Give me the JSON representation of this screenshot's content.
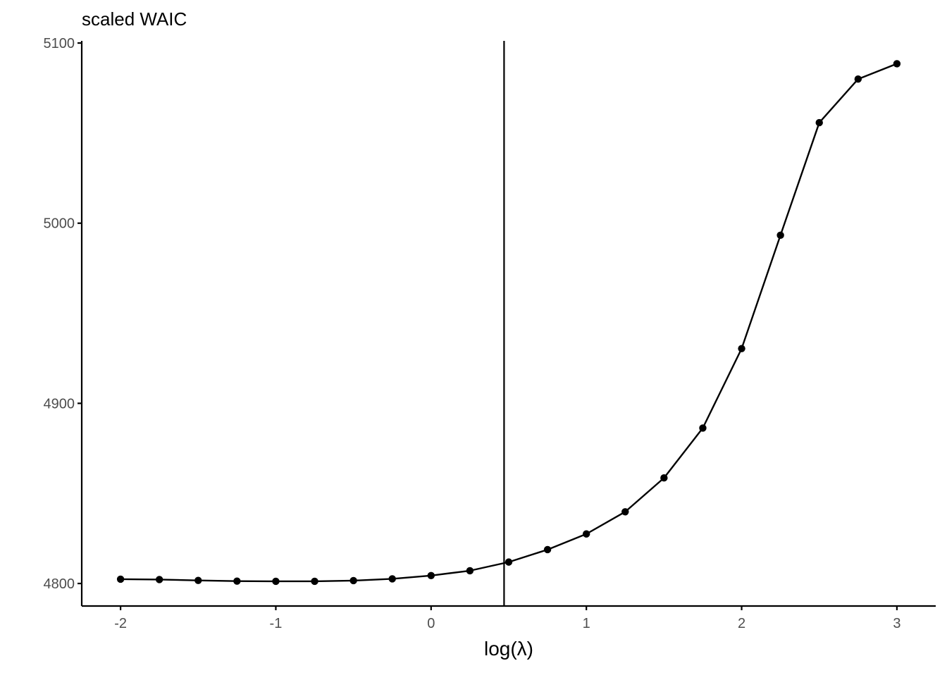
{
  "chart_data": {
    "type": "line",
    "title": "scaled WAIC",
    "xlabel": "log(λ)",
    "ylabel": "",
    "xlim": [
      -2.25,
      3.25
    ],
    "ylim": [
      4787.5,
      5101.2
    ],
    "x_ticks": [
      -2,
      -1,
      0,
      1,
      2,
      3
    ],
    "x_tick_labels": [
      "-2",
      "-1",
      "0",
      "1",
      "2",
      "3"
    ],
    "y_ticks": [
      4800,
      4900,
      5000,
      5100
    ],
    "y_tick_labels": [
      "4800",
      "4900",
      "5000",
      "5100"
    ],
    "grid": false,
    "vline_x": 0.47,
    "series": [
      {
        "x": [
          -2,
          -1.75,
          -1.5,
          -1.25,
          -1,
          -0.75,
          -0.5,
          -0.25,
          0,
          0.25,
          0.5,
          0.75,
          1,
          1.25,
          1.5,
          1.75,
          2,
          2.25,
          2.5,
          2.75,
          3
        ],
        "y": [
          4802.4,
          4802.2,
          4801.7,
          4801.3,
          4801.2,
          4801.2,
          4801.6,
          4802.6,
          4804.4,
          4807.1,
          4811.9,
          4818.8,
          4827.5,
          4839.8,
          4858.6,
          4886.3,
          4930.4,
          4993.3,
          5055.8,
          5080.0,
          5088.5
        ]
      }
    ]
  },
  "colors": {
    "line": "#000000",
    "axis": "#000000",
    "tick_text": "#4d4d4d"
  }
}
